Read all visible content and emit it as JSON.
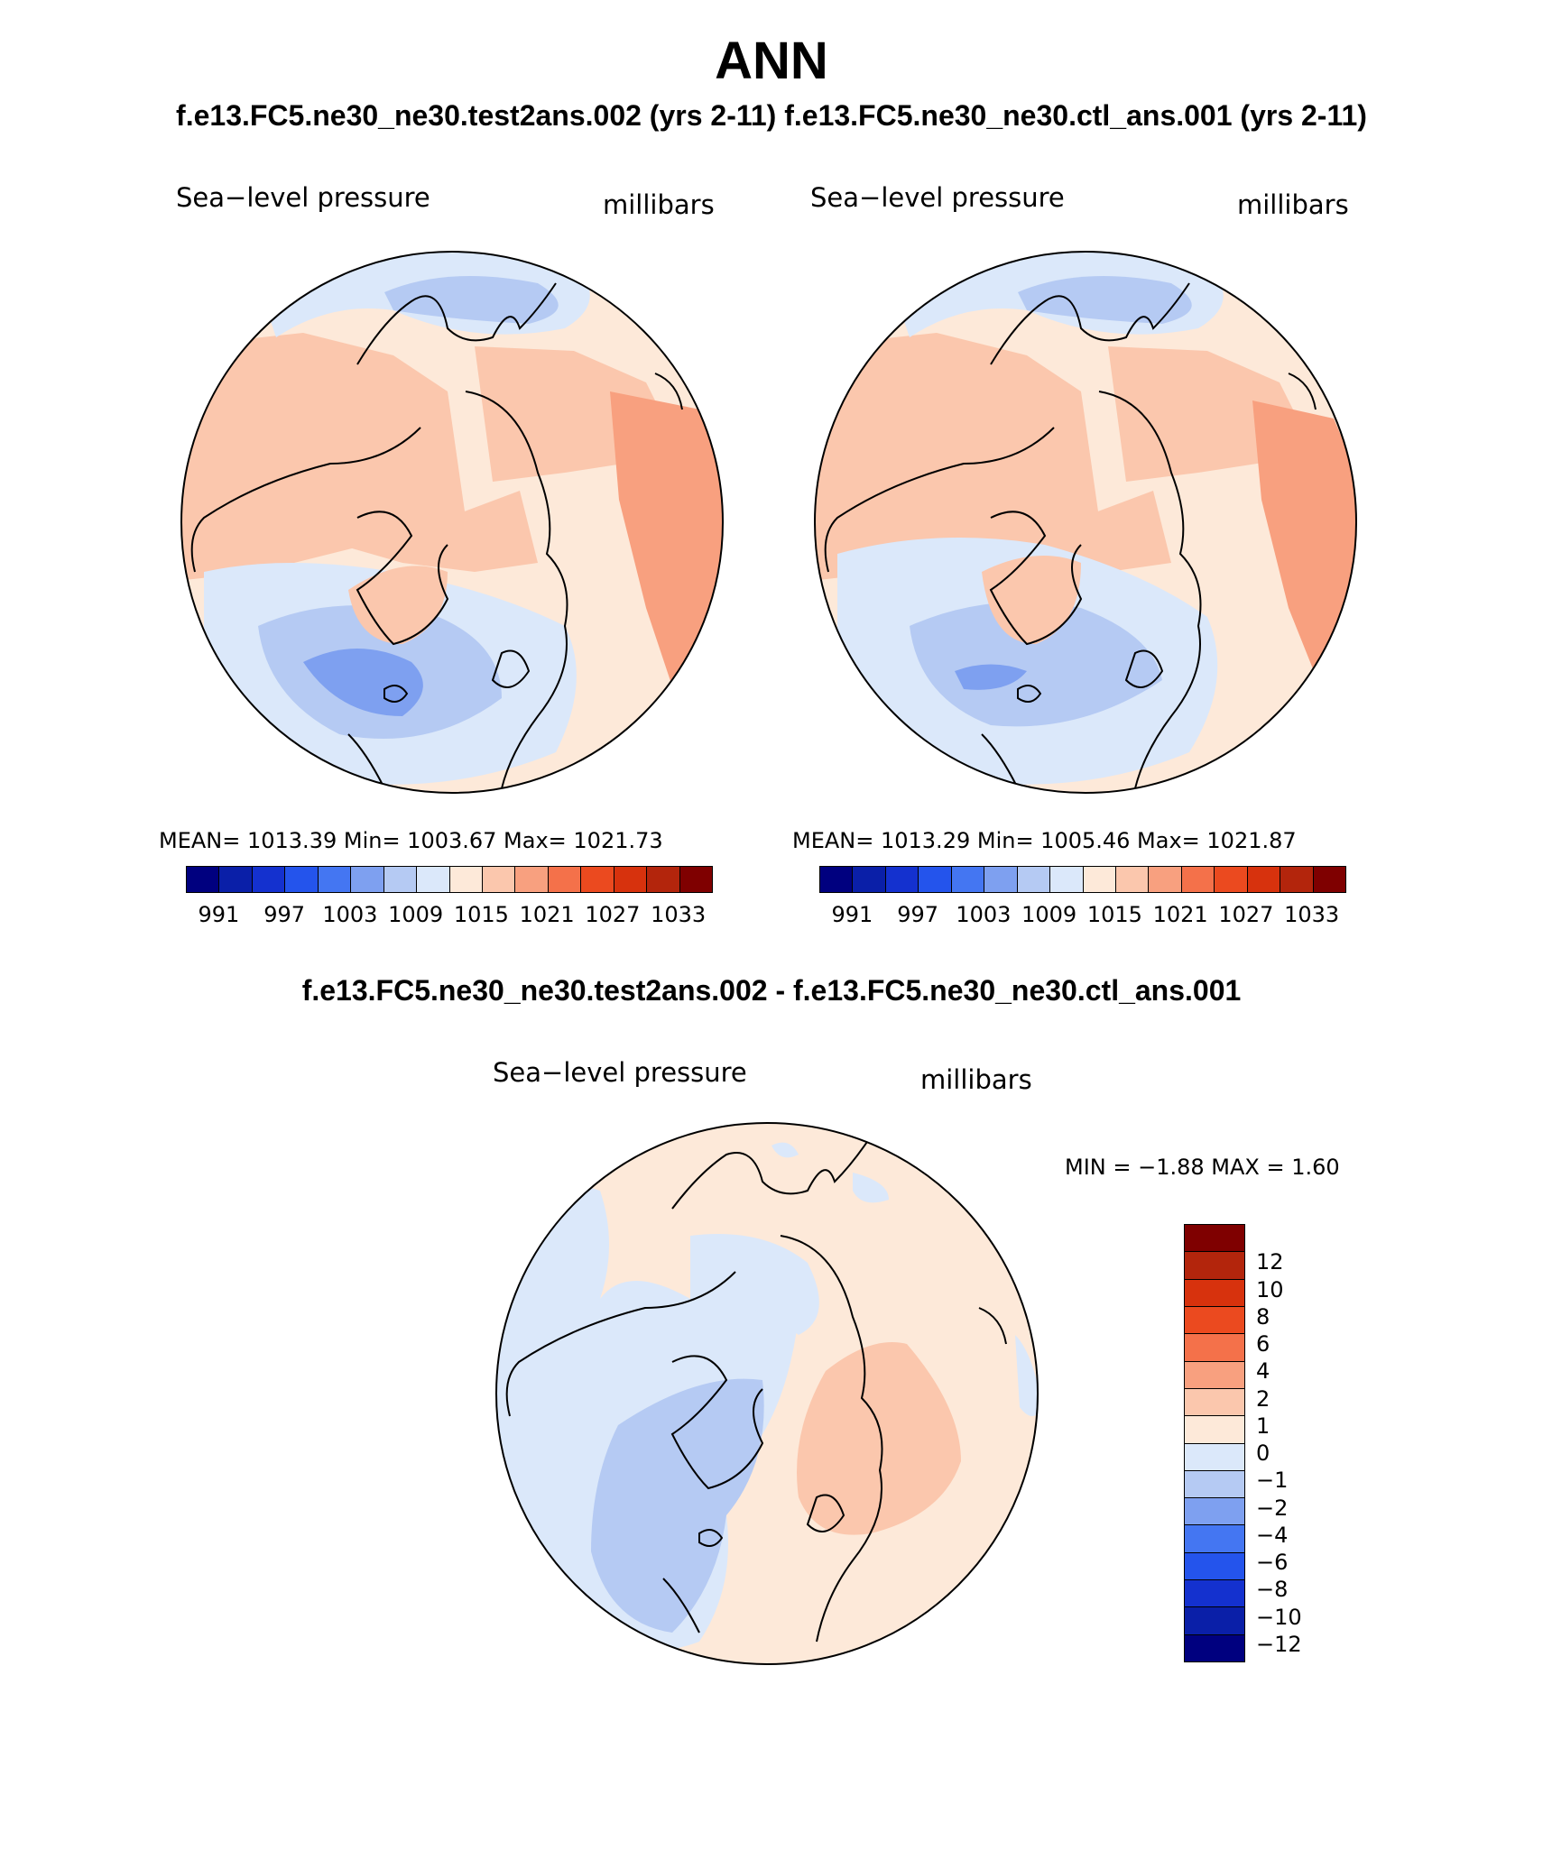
{
  "title": "ANN",
  "case_line": "f.e13.FC5.ne30_ne30.test2ans.002 (yrs 2-11)   f.e13.FC5.ne30_ne30.ctl_ans.001 (yrs 2-11)",
  "diff_title": "f.e13.FC5.ne30_ne30.test2ans.002 - f.e13.FC5.ne30_ne30.ctl_ans.001",
  "panels": [
    {
      "variable": "Sea−level pressure",
      "units": "millibars",
      "stats": "MEAN= 1013.39   Min= 1003.67   Max= 1021.73"
    },
    {
      "variable": "Sea−level pressure",
      "units": "millibars",
      "stats": "MEAN= 1013.29   Min= 1005.46   Max= 1021.87"
    }
  ],
  "diff_panel": {
    "variable": "Sea−level pressure",
    "units": "millibars",
    "stats": "MIN =   −1.88 MAX =     1.60"
  },
  "colorbar_abs": {
    "colors": [
      "#00007f",
      "#0a1fa8",
      "#1431cf",
      "#2454ec",
      "#4476f2",
      "#7ea0f0",
      "#b5caf3",
      "#dbe8fa",
      "#fde9d9",
      "#fbc7ad",
      "#f8a07f",
      "#f4714a",
      "#eb4a1f",
      "#d7320d",
      "#b3250c",
      "#7f0000"
    ],
    "labels": [
      "991",
      "997",
      "1003",
      "1009",
      "1015",
      "1021",
      "1027",
      "1033"
    ]
  },
  "colorbar_diff": {
    "colors": [
      "#7f0000",
      "#b3250c",
      "#d7320d",
      "#eb4a1f",
      "#f4714a",
      "#f8a07f",
      "#fbc7ad",
      "#fde9d9",
      "#dbe8fa",
      "#b5caf3",
      "#7ea0f0",
      "#4476f2",
      "#2454ec",
      "#1431cf",
      "#0a1fa8",
      "#00007f"
    ],
    "labels": [
      "12",
      "10",
      "8",
      "6",
      "4",
      "2",
      "1",
      "0",
      "−1",
      "−2",
      "−4",
      "−6",
      "−8",
      "−10",
      "−12"
    ]
  }
}
